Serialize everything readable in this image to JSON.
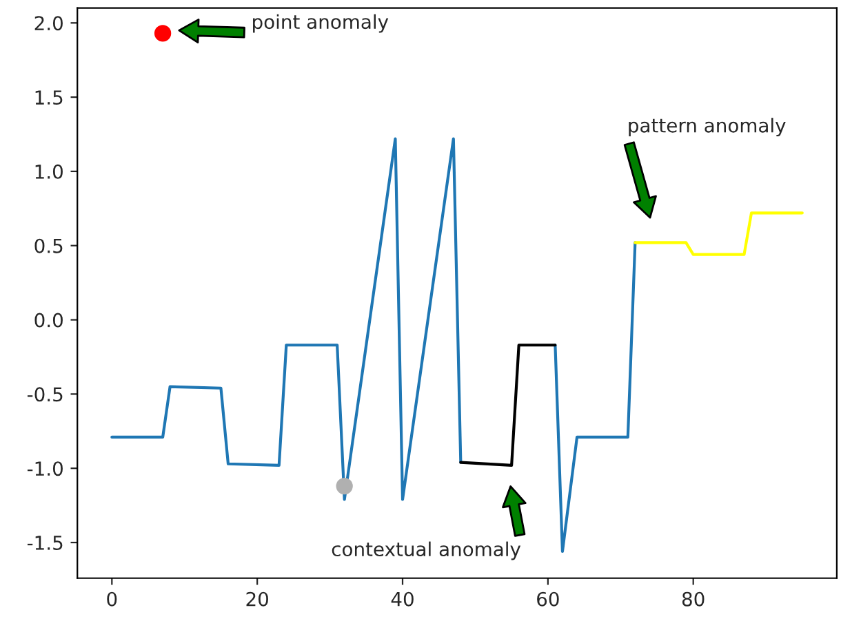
{
  "chart_data": {
    "type": "line",
    "series": [
      {
        "color": "#1f77b4",
        "x": [
          0,
          7,
          8,
          15,
          16,
          23,
          24,
          31,
          32,
          39,
          40,
          47,
          48,
          54,
          61,
          62,
          64,
          71,
          72
        ],
        "values": [
          -0.79,
          -0.79,
          -0.45,
          -0.46,
          -0.97,
          -0.98,
          -0.17,
          -0.17,
          -1.21,
          1.22,
          -1.21,
          1.22,
          -0.96,
          null,
          -0.17,
          -1.56,
          -0.79,
          -0.79,
          0.52
        ]
      },
      {
        "color": "#000000",
        "x": [
          48,
          55,
          56,
          61
        ],
        "values": [
          -0.96,
          -0.98,
          -0.17,
          -0.17
        ]
      },
      {
        "color": "#ffff00",
        "x": [
          72,
          79,
          80,
          87,
          88,
          95
        ],
        "values": [
          0.52,
          0.52,
          0.44,
          0.44,
          0.72,
          0.72
        ]
      },
      {
        "type": "scatter",
        "marker": "circle",
        "color": "#ff0000",
        "x": [
          7
        ],
        "values": [
          1.93
        ]
      },
      {
        "type": "scatter",
        "marker": "circle",
        "color": "#b0b0b0",
        "x": [
          32
        ],
        "values": [
          -1.12
        ]
      }
    ],
    "annotations": [
      "point anomaly",
      "pattern anomaly",
      "contextual anomaly"
    ],
    "xlim": [
      -4.75,
      99.75
    ],
    "ylim": [
      -1.74,
      2.1
    ],
    "xticks": [
      0,
      20,
      40,
      60,
      80
    ],
    "yticks": [
      -1.5,
      {
        "value": -1.0,
        "label": "-1.0"
      },
      -0.5,
      {
        "value": 0.0,
        "label": "0.0"
      },
      0.5,
      {
        "value": 1.0,
        "label": "1.0"
      },
      1.5,
      {
        "value": 2.0,
        "label": "2.0"
      }
    ],
    "grid": false,
    "legend": false,
    "line_style": "solid"
  }
}
